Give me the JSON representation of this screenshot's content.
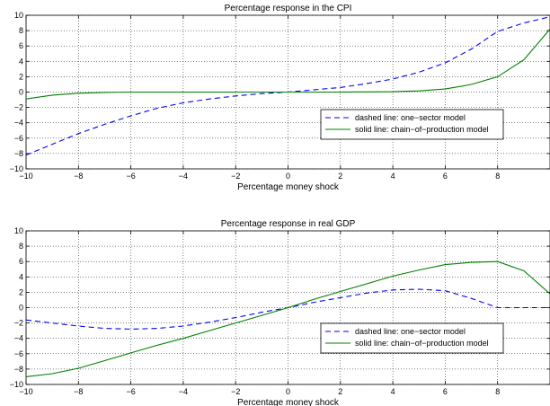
{
  "chart_data": [
    {
      "type": "line",
      "title": "Percentage response in the CPI",
      "xlabel": "Percentage money shock",
      "ylabel": "",
      "xlim": [
        -10,
        10
      ],
      "ylim": [
        -10,
        10
      ],
      "x_ticks": [
        -10,
        -8,
        -6,
        -4,
        -2,
        0,
        2,
        4,
        6,
        8
      ],
      "x_tick_labels": [
        "−10",
        "−8",
        "−6",
        "−4",
        "−2",
        "0",
        "2",
        "4",
        "6",
        "8"
      ],
      "y_ticks": [
        -10,
        -8,
        -6,
        -4,
        -2,
        0,
        2,
        4,
        6,
        8,
        10
      ],
      "y_tick_labels": [
        "−10",
        "−8",
        "−6",
        "−4",
        "−2",
        "0",
        "2",
        "4",
        "6",
        "8",
        "10"
      ],
      "grid": true,
      "legend_position": "lower-right",
      "series": [
        {
          "name": "dashed line: one−sector model",
          "style": "dashed",
          "color": "#0000ff",
          "x": [
            -10,
            -9,
            -8,
            -7,
            -6,
            -5,
            -4,
            -3,
            -2,
            -1,
            0,
            1,
            2,
            3,
            4,
            5,
            6,
            7,
            8,
            9,
            10
          ],
          "y": [
            -8.2,
            -6.8,
            -5.4,
            -4.2,
            -3.1,
            -2.1,
            -1.4,
            -0.9,
            -0.5,
            -0.2,
            0,
            0.3,
            0.6,
            1.1,
            1.7,
            2.6,
            3.8,
            5.6,
            7.9,
            9.0,
            9.8
          ]
        },
        {
          "name": "solid line: chain−of−production model",
          "style": "solid",
          "color": "#008000",
          "x": [
            -10,
            -9,
            -8,
            -7,
            -6,
            -5,
            -4,
            -3,
            -2,
            -1,
            0,
            1,
            2,
            3,
            4,
            5,
            6,
            7,
            8,
            9,
            10
          ],
          "y": [
            -0.9,
            -0.4,
            -0.15,
            -0.05,
            0,
            0,
            0,
            0,
            0,
            0,
            0,
            0,
            0,
            0.02,
            0.05,
            0.15,
            0.4,
            1.0,
            2.0,
            4.2,
            8.2
          ]
        }
      ]
    },
    {
      "type": "line",
      "title": "Percentage response in real GDP",
      "xlabel": "Percentage money shock",
      "ylabel": "",
      "xlim": [
        -10,
        10
      ],
      "ylim": [
        -10,
        10
      ],
      "x_ticks": [
        -10,
        -8,
        -6,
        -4,
        -2,
        0,
        2,
        4,
        6,
        8
      ],
      "x_tick_labels": [
        "−10",
        "−8",
        "−6",
        "−4",
        "−2",
        "0",
        "2",
        "4",
        "6",
        "8"
      ],
      "y_ticks": [
        -10,
        -8,
        -6,
        -4,
        -2,
        0,
        2,
        4,
        6,
        8,
        10
      ],
      "y_tick_labels": [
        "−10",
        "−8",
        "−6",
        "−4",
        "−2",
        "0",
        "2",
        "4",
        "6",
        "8",
        "10"
      ],
      "grid": true,
      "legend_position": "lower-right",
      "series": [
        {
          "name": "dashed line: one−sector model",
          "style": "dashed",
          "color": "#0000ff",
          "x": [
            -10,
            -9,
            -8,
            -7,
            -6,
            -5,
            -4,
            -3,
            -2,
            -1,
            0,
            1,
            2,
            3,
            4,
            5,
            6,
            7,
            8,
            9,
            10
          ],
          "y": [
            -1.6,
            -2.0,
            -2.4,
            -2.7,
            -2.8,
            -2.7,
            -2.4,
            -1.9,
            -1.3,
            -0.6,
            0,
            0.7,
            1.3,
            1.9,
            2.3,
            2.4,
            2.2,
            1.2,
            0,
            0,
            0
          ]
        },
        {
          "name": "solid line: chain−of−production model",
          "style": "solid",
          "color": "#008000",
          "x": [
            -10,
            -9,
            -8,
            -7,
            -6,
            -5,
            -4,
            -3,
            -2,
            -1,
            0,
            1,
            2,
            3,
            4,
            5,
            6,
            7,
            8,
            9,
            10
          ],
          "y": [
            -9.0,
            -8.6,
            -7.9,
            -6.9,
            -5.9,
            -4.9,
            -4.0,
            -3.0,
            -2.0,
            -1.0,
            0,
            1.1,
            2.1,
            3.1,
            4.1,
            4.9,
            5.6,
            5.9,
            6.0,
            4.8,
            1.8
          ]
        }
      ]
    }
  ]
}
